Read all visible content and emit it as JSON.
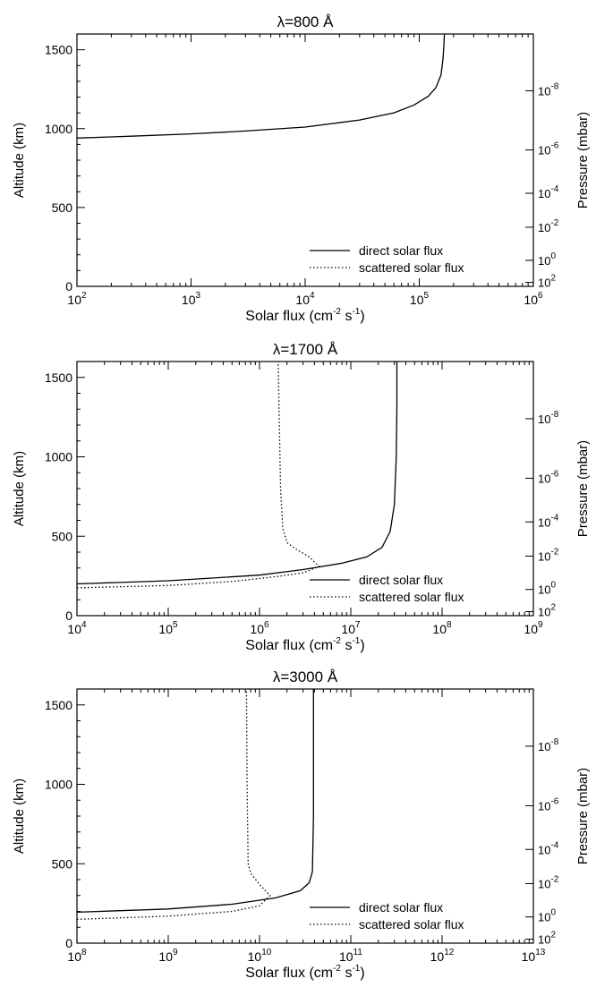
{
  "chart_data": [
    {
      "type": "line",
      "title": "λ=800 Å",
      "xlabel": "Solar flux (cm-2 s-1)",
      "ylabel": "Altitude (km)",
      "y2label": "Pressure (mbar)",
      "xscale": "log",
      "xlim_exp": [
        2,
        6
      ],
      "xticks": [
        "10^2",
        "10^3",
        "10^4",
        "10^5",
        "10^6"
      ],
      "ylim": [
        0,
        1600
      ],
      "yticks": [
        0,
        500,
        1000,
        1500
      ],
      "y2ticks": [
        {
          "label": "10^-8",
          "altitude": 1240
        },
        {
          "label": "10^-6",
          "altitude": 865
        },
        {
          "label": "10^-4",
          "altitude": 590
        },
        {
          "label": "10^-2",
          "altitude": 375
        },
        {
          "label": "10^0",
          "altitude": 165
        },
        {
          "label": "10^2",
          "altitude": 25
        }
      ],
      "legend": [
        "direct solar flux",
        "scattered solar flux"
      ],
      "legend_position": "bottom-right",
      "series": [
        {
          "name": "direct solar flux",
          "style": "solid",
          "x": [
            100,
            300,
            1000,
            3000,
            10000,
            30000,
            60000,
            90000,
            120000,
            140000,
            155000,
            162000,
            165000,
            166000
          ],
          "y": [
            940,
            952,
            967,
            985,
            1010,
            1055,
            1100,
            1150,
            1205,
            1260,
            1340,
            1450,
            1550,
            1600
          ]
        }
      ]
    },
    {
      "type": "line",
      "title": "λ=1700 Å",
      "xlabel": "Solar flux (cm-2 s-1)",
      "ylabel": "Altitude (km)",
      "y2label": "Pressure (mbar)",
      "xscale": "log",
      "xlim_exp": [
        4,
        9
      ],
      "xticks": [
        "10^4",
        "10^5",
        "10^6",
        "10^7",
        "10^8",
        "10^9"
      ],
      "ylim": [
        0,
        1600
      ],
      "yticks": [
        0,
        500,
        1000,
        1500
      ],
      "y2ticks": [
        {
          "label": "10^-8",
          "altitude": 1240
        },
        {
          "label": "10^-6",
          "altitude": 865
        },
        {
          "label": "10^-4",
          "altitude": 590
        },
        {
          "label": "10^-2",
          "altitude": 375
        },
        {
          "label": "10^0",
          "altitude": 165
        },
        {
          "label": "10^2",
          "altitude": 25
        }
      ],
      "legend": [
        "direct solar flux",
        "scattered solar flux"
      ],
      "legend_position": "bottom-right",
      "series": [
        {
          "name": "direct solar flux",
          "style": "solid",
          "x": [
            10000,
            100000,
            1000000,
            3000000,
            8000000,
            15000000,
            22000000,
            27000000,
            30000000,
            31500000,
            32000000,
            32000000
          ],
          "y": [
            200,
            220,
            255,
            290,
            330,
            370,
            430,
            530,
            700,
            1000,
            1300,
            1600
          ]
        },
        {
          "name": "scattered solar flux",
          "style": "dotted",
          "x": [
            10000,
            100000,
            500000,
            1500000,
            3000000,
            4500000,
            3500000,
            2500000,
            2000000,
            1800000,
            1700000,
            1650000,
            1600000
          ],
          "y": [
            175,
            190,
            215,
            245,
            270,
            310,
            370,
            420,
            460,
            550,
            800,
            1200,
            1600
          ]
        }
      ]
    },
    {
      "type": "line",
      "title": "λ=3000 Å",
      "xlabel": "Solar flux (cm-2 s-1)",
      "ylabel": "Altitude (km)",
      "y2label": "Pressure (mbar)",
      "xscale": "log",
      "xlim_exp": [
        8,
        13
      ],
      "xticks": [
        "10^8",
        "10^9",
        "10^10",
        "10^11",
        "10^12",
        "10^13"
      ],
      "ylim": [
        0,
        1600
      ],
      "yticks": [
        0,
        500,
        1000,
        1500
      ],
      "y2ticks": [
        {
          "label": "10^-8",
          "altitude": 1240
        },
        {
          "label": "10^-6",
          "altitude": 865
        },
        {
          "label": "10^-4",
          "altitude": 590
        },
        {
          "label": "10^-2",
          "altitude": 375
        },
        {
          "label": "10^0",
          "altitude": 165
        },
        {
          "label": "10^2",
          "altitude": 25
        }
      ],
      "legend": [
        "direct solar flux",
        "scattered solar flux"
      ],
      "legend_position": "bottom-right",
      "series": [
        {
          "name": "direct solar flux",
          "style": "solid",
          "x": [
            100000000,
            1000000000,
            5000000000,
            15000000000,
            28000000000,
            35000000000,
            38000000000,
            39000000000,
            39000000000
          ],
          "y": [
            195,
            215,
            245,
            285,
            330,
            380,
            450,
            800,
            1600
          ]
        },
        {
          "name": "scattered solar flux",
          "style": "dotted",
          "x": [
            100000000,
            1000000000,
            5000000000,
            10000000000,
            13000000000,
            10000000000,
            8000000000,
            7500000000,
            7300000000,
            7200000000
          ],
          "y": [
            150,
            170,
            200,
            235,
            300,
            370,
            440,
            500,
            1000,
            1600
          ]
        }
      ]
    }
  ]
}
